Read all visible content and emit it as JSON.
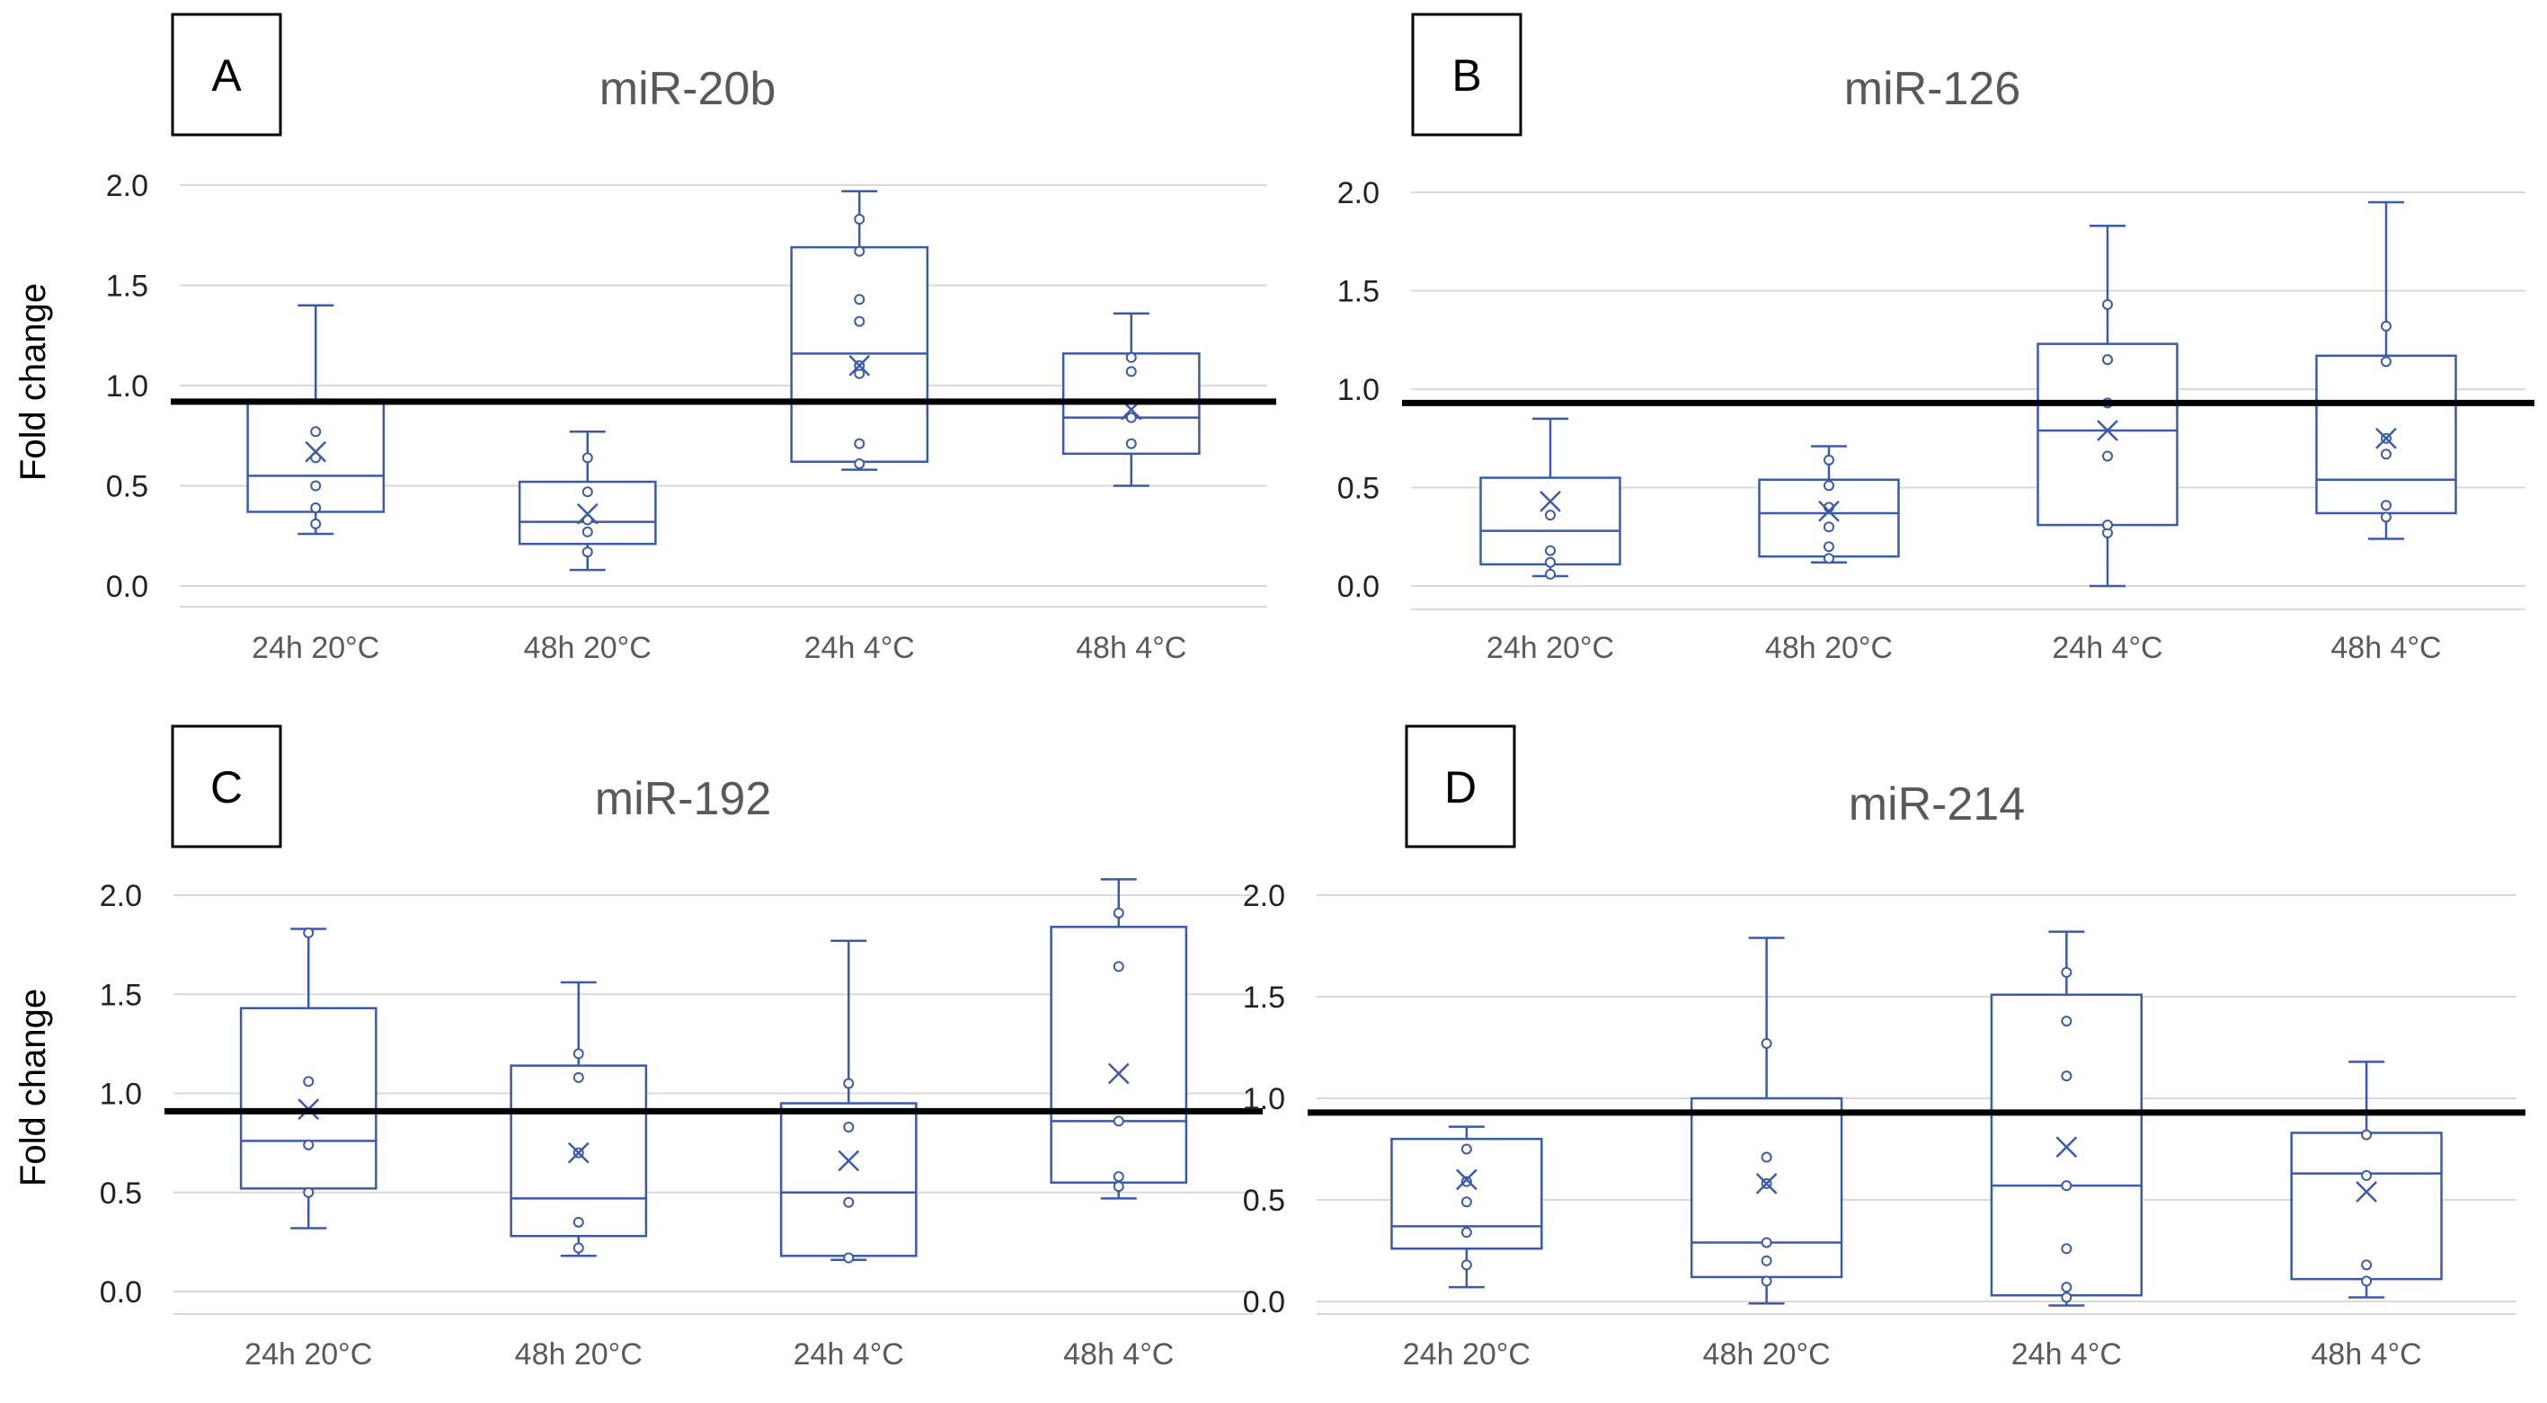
{
  "figure": {
    "y_axis_label": "Fold change",
    "colors": {
      "box": "#3b5aa8",
      "reference_line": "#000000",
      "grid": "#d9d9d9"
    }
  },
  "chart_data": [
    {
      "panel": "A",
      "type": "box",
      "title": "miR-20b",
      "ylabel": "Fold change",
      "ylim": [
        0,
        2
      ],
      "yticks": [
        "0.0",
        "0.5",
        "1.0",
        "1.5",
        "2.0"
      ],
      "reference_line": 0.92,
      "categories": [
        "24h 20°C",
        "48h 20°C",
        "24h 4°C",
        "48h 4°C"
      ],
      "boxes": [
        {
          "whisker_low": 0.26,
          "q1": 0.37,
          "median": 0.55,
          "q3": 0.92,
          "whisker_high": 1.4,
          "mean": 0.67,
          "points": [
            0.31,
            0.39,
            0.5,
            0.64,
            0.77
          ]
        },
        {
          "whisker_low": 0.08,
          "q1": 0.21,
          "median": 0.32,
          "q3": 0.52,
          "whisker_high": 0.77,
          "mean": 0.36,
          "points": [
            0.17,
            0.27,
            0.33,
            0.47,
            0.64
          ]
        },
        {
          "whisker_low": 0.58,
          "q1": 0.62,
          "median": 1.16,
          "q3": 1.69,
          "whisker_high": 1.97,
          "mean": 1.1,
          "points": [
            0.61,
            0.71,
            1.06,
            1.1,
            1.32,
            1.43,
            1.67,
            1.83
          ]
        },
        {
          "whisker_low": 0.5,
          "q1": 0.66,
          "median": 0.84,
          "q3": 1.16,
          "whisker_high": 1.36,
          "mean": 0.88,
          "points": [
            0.71,
            0.84,
            1.07,
            1.14
          ]
        }
      ]
    },
    {
      "panel": "B",
      "type": "box",
      "title": "miR-126",
      "ylabel": "",
      "ylim": [
        0,
        2
      ],
      "yticks": [
        "0.0",
        "0.5",
        "1.0",
        "1.5",
        "2.0"
      ],
      "reference_line": 0.93,
      "categories": [
        "24h 20°C",
        "48h 20°C",
        "24h 4°C",
        "48h 4°C"
      ],
      "boxes": [
        {
          "whisker_low": 0.05,
          "q1": 0.11,
          "median": 0.28,
          "q3": 0.55,
          "whisker_high": 0.85,
          "mean": 0.43,
          "points": [
            0.06,
            0.12,
            0.18,
            0.36
          ]
        },
        {
          "whisker_low": 0.12,
          "q1": 0.15,
          "median": 0.37,
          "q3": 0.54,
          "whisker_high": 0.71,
          "mean": 0.38,
          "points": [
            0.14,
            0.2,
            0.3,
            0.4,
            0.51,
            0.64
          ]
        },
        {
          "whisker_low": 0.0,
          "q1": 0.31,
          "median": 0.79,
          "q3": 1.23,
          "whisker_high": 1.83,
          "mean": 0.79,
          "points": [
            0.27,
            0.31,
            0.66,
            0.93,
            1.15,
            1.43
          ]
        },
        {
          "whisker_low": 0.24,
          "q1": 0.37,
          "median": 0.54,
          "q3": 1.17,
          "whisker_high": 1.95,
          "mean": 0.75,
          "points": [
            0.35,
            0.41,
            0.67,
            0.75,
            1.14,
            1.32
          ]
        }
      ]
    },
    {
      "panel": "C",
      "type": "box",
      "title": "miR-192",
      "ylabel": "Fold change",
      "ylim": [
        0,
        2
      ],
      "yticks": [
        "0.0",
        "0.5",
        "1.0",
        "1.5",
        "2.0"
      ],
      "reference_line": 0.91,
      "categories": [
        "24h 20°C",
        "48h 20°C",
        "24h 4°C",
        "48h 4°C"
      ],
      "boxes": [
        {
          "whisker_low": 0.32,
          "q1": 0.52,
          "median": 0.76,
          "q3": 1.43,
          "whisker_high": 1.83,
          "mean": 0.92,
          "points": [
            0.5,
            0.74,
            1.06,
            1.81
          ]
        },
        {
          "whisker_low": 0.18,
          "q1": 0.28,
          "median": 0.47,
          "q3": 1.14,
          "whisker_high": 1.56,
          "mean": 0.7,
          "points": [
            0.22,
            0.35,
            0.7,
            1.08,
            1.2
          ]
        },
        {
          "whisker_low": 0.16,
          "q1": 0.18,
          "median": 0.5,
          "q3": 0.95,
          "whisker_high": 1.77,
          "mean": 0.66,
          "points": [
            0.17,
            0.45,
            0.83,
            1.05
          ]
        },
        {
          "whisker_low": 0.47,
          "q1": 0.55,
          "median": 0.86,
          "q3": 1.84,
          "whisker_high": 2.08,
          "mean": 1.1,
          "points": [
            0.53,
            0.58,
            0.86,
            1.64,
            1.91
          ]
        }
      ]
    },
    {
      "panel": "D",
      "type": "box",
      "title": "miR-214",
      "ylabel": "",
      "ylim": [
        0,
        2
      ],
      "yticks": [
        "0.0",
        "0.5",
        "1.0",
        "1.5",
        "2.0"
      ],
      "reference_line": 0.93,
      "categories": [
        "24h 20°C",
        "48h 20°C",
        "24h 4°C",
        "48h 4°C"
      ],
      "boxes": [
        {
          "whisker_low": 0.07,
          "q1": 0.26,
          "median": 0.37,
          "q3": 0.8,
          "whisker_high": 0.86,
          "mean": 0.6,
          "points": [
            0.18,
            0.34,
            0.49,
            0.59,
            0.75
          ]
        },
        {
          "whisker_low": -0.01,
          "q1": 0.12,
          "median": 0.29,
          "q3": 1.0,
          "whisker_high": 1.79,
          "mean": 0.58,
          "points": [
            0.1,
            0.2,
            0.29,
            0.58,
            0.71,
            1.27
          ]
        },
        {
          "whisker_low": -0.02,
          "q1": 0.03,
          "median": 0.57,
          "q3": 1.51,
          "whisker_high": 1.82,
          "mean": 0.76,
          "points": [
            0.02,
            0.07,
            0.26,
            0.57,
            1.11,
            1.38,
            1.62
          ]
        },
        {
          "whisker_low": 0.02,
          "q1": 0.11,
          "median": 0.63,
          "q3": 0.83,
          "whisker_high": 1.18,
          "mean": 0.54,
          "points": [
            0.1,
            0.18,
            0.62,
            0.82
          ]
        }
      ]
    }
  ]
}
